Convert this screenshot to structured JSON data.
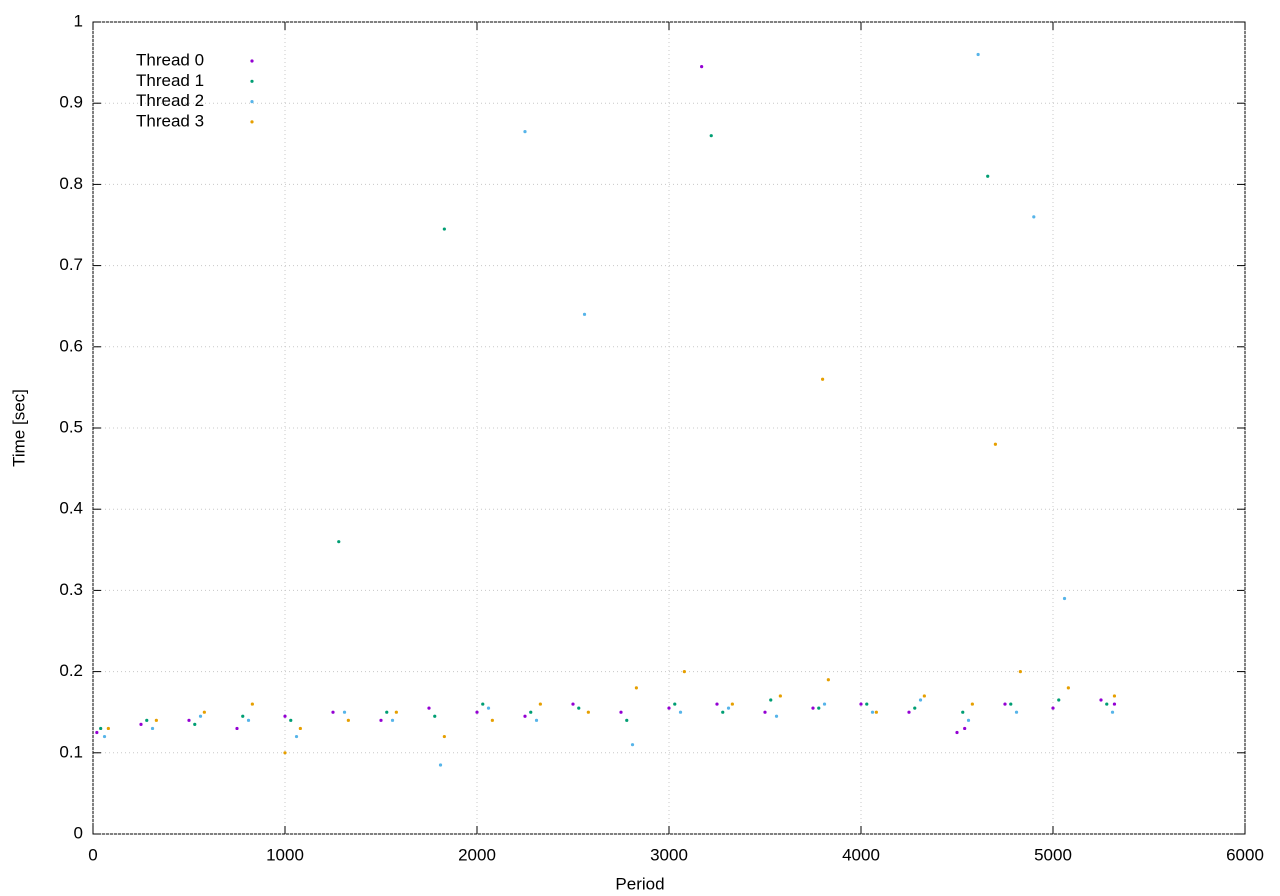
{
  "chart_data": {
    "type": "scatter",
    "xlabel": "Period",
    "ylabel": "Time [sec]",
    "xlim": [
      0,
      6000
    ],
    "xticks": [
      0,
      1000,
      2000,
      3000,
      4000,
      5000,
      6000
    ],
    "ylim": [
      0,
      1
    ],
    "yticks": [
      0,
      0.1,
      0.2,
      0.3,
      0.4,
      0.5,
      0.6,
      0.7,
      0.8,
      0.9,
      1
    ],
    "grid": true,
    "legend": "upper-left",
    "series": [
      {
        "name": "Thread 0",
        "color": "#9400d3",
        "x": [
          20,
          250,
          500,
          750,
          1000,
          1250,
          1500,
          1750,
          2000,
          2250,
          2500,
          2750,
          3000,
          3250,
          3500,
          3750,
          4000,
          4250,
          4500,
          4750,
          5000,
          5250,
          5320,
          4540,
          3170
        ],
        "values": [
          0.125,
          0.135,
          0.14,
          0.13,
          0.145,
          0.15,
          0.14,
          0.155,
          0.15,
          0.145,
          0.16,
          0.15,
          0.155,
          0.16,
          0.15,
          0.155,
          0.16,
          0.15,
          0.125,
          0.16,
          0.155,
          0.165,
          0.16,
          0.13,
          0.945
        ]
      },
      {
        "name": "Thread 1",
        "color": "#009e73",
        "x": [
          40,
          280,
          530,
          780,
          1030,
          1280,
          1530,
          1780,
          2030,
          2280,
          2530,
          2780,
          3030,
          3280,
          3530,
          3780,
          4030,
          4280,
          4530,
          4780,
          5030,
          5280,
          1830,
          3220,
          4660
        ],
        "values": [
          0.13,
          0.14,
          0.135,
          0.145,
          0.14,
          0.36,
          0.15,
          0.145,
          0.16,
          0.15,
          0.155,
          0.14,
          0.16,
          0.15,
          0.165,
          0.155,
          0.16,
          0.155,
          0.15,
          0.16,
          0.165,
          0.16,
          0.745,
          0.86,
          0.81
        ]
      },
      {
        "name": "Thread 2",
        "color": "#56b4e9",
        "x": [
          60,
          310,
          560,
          810,
          1060,
          1310,
          1560,
          1810,
          2060,
          2310,
          2560,
          2810,
          3060,
          3310,
          3560,
          3810,
          4060,
          4310,
          4560,
          4810,
          5060,
          5310,
          2250,
          4610,
          4900
        ],
        "values": [
          0.12,
          0.13,
          0.145,
          0.14,
          0.12,
          0.15,
          0.14,
          0.085,
          0.155,
          0.14,
          0.64,
          0.11,
          0.15,
          0.155,
          0.145,
          0.16,
          0.15,
          0.165,
          0.14,
          0.15,
          0.29,
          0.15,
          0.865,
          0.96,
          0.76
        ]
      },
      {
        "name": "Thread 3",
        "color": "#e69f00",
        "x": [
          80,
          330,
          580,
          830,
          1080,
          1330,
          1580,
          1830,
          2080,
          2330,
          2580,
          2830,
          3080,
          3330,
          3580,
          3830,
          4080,
          4330,
          4580,
          4830,
          5080,
          5320,
          1000,
          3800,
          4700
        ],
        "values": [
          0.13,
          0.14,
          0.15,
          0.16,
          0.13,
          0.14,
          0.15,
          0.12,
          0.14,
          0.16,
          0.15,
          0.18,
          0.2,
          0.16,
          0.17,
          0.19,
          0.15,
          0.17,
          0.16,
          0.2,
          0.18,
          0.17,
          0.1,
          0.56,
          0.48
        ]
      }
    ]
  }
}
